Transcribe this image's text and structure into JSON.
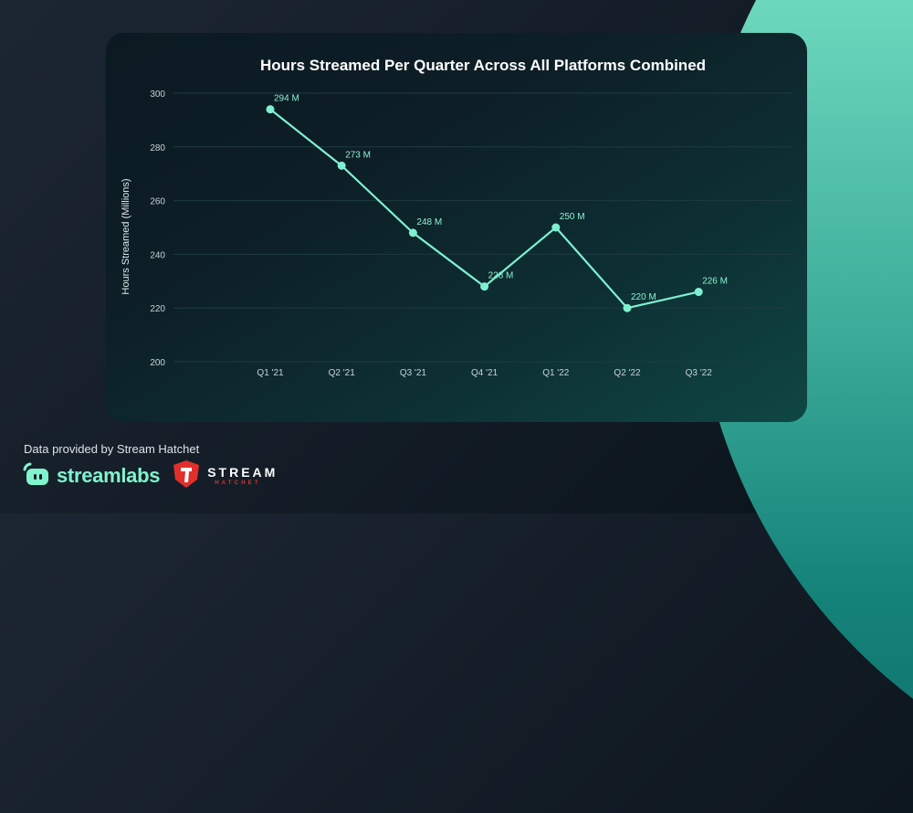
{
  "chart_data": {
    "type": "line",
    "title": "Hours Streamed Per Quarter Across All Platforms Combined",
    "xlabel": "",
    "ylabel": "Hours Streamed (Millions)",
    "categories": [
      "Q1 '21",
      "Q2 '21",
      "Q3 '21",
      "Q4 '21",
      "Q1 '22",
      "Q2 '22",
      "Q3 '22"
    ],
    "series": [
      {
        "name": "Hours Streamed",
        "values": [
          294,
          273,
          248,
          228,
          250,
          220,
          226
        ],
        "labels": [
          "294 M",
          "273 M",
          "248 M",
          "228 M",
          "250 M",
          "220 M",
          "226 M"
        ],
        "color": "#7ff0cf"
      }
    ],
    "yticks": [
      200,
      220,
      240,
      260,
      280,
      300
    ],
    "ylim": [
      200,
      300
    ],
    "grid": true,
    "legend": "none"
  },
  "footer": {
    "credit": "Data provided by Stream Hatchet",
    "logos": [
      {
        "name": "streamlabs",
        "text": "streamlabs",
        "icon": "streamlabs-logo-icon",
        "color": "#80f4cd"
      },
      {
        "name": "stream-hatchet",
        "text_top": "STREAM",
        "text_bottom": "HATCHET",
        "icon": "stream-hatchet-shield-icon",
        "color": "#e0302c"
      }
    ]
  }
}
